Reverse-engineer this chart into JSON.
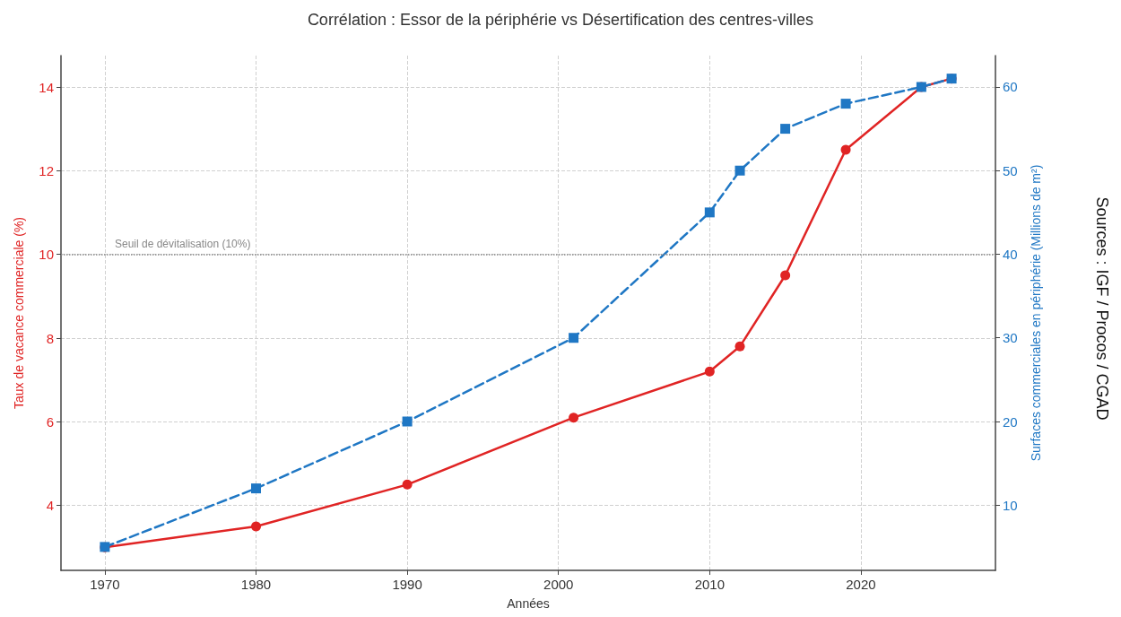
{
  "chart_data": {
    "type": "line",
    "title": "Corrélation : Essor de la périphérie vs Désertification des centres-villes",
    "xlabel": "Années",
    "ylabel": "Taux de vacance commerciale (%)",
    "y2label": "Surfaces commerciales en périphérie (Millions de m²)",
    "x": [
      1970,
      1980,
      1990,
      2001,
      2010,
      2012,
      2015,
      2019,
      2024,
      2026
    ],
    "series": [
      {
        "color": "#e02424",
        "marker": "circle",
        "line_style": "solid",
        "values": [
          3.0,
          3.5,
          4.5,
          6.1,
          7.2,
          7.8,
          9.5,
          12.5,
          14.0,
          14.2
        ]
      },
      {
        "color": "#1f77c4",
        "marker": "square",
        "line_style": "dashed",
        "axis": "y2",
        "values": [
          5,
          12,
          20,
          30,
          45,
          50,
          55,
          58,
          60,
          61
        ]
      }
    ],
    "xlim": [
      1967.1,
      2028.9
    ],
    "xticks": [
      1970,
      1980,
      1990,
      2000,
      2010,
      2020
    ],
    "ylim": [
      2.45,
      14.75
    ],
    "yticks": [
      4,
      6,
      8,
      10,
      12,
      14
    ],
    "y2lim": [
      2.2,
      63.75
    ],
    "y2ticks": [
      10,
      20,
      30,
      40,
      50,
      60
    ],
    "ref_lines": [
      {
        "axis": "y",
        "value": 10,
        "label": "Seuil de dévitalisation (10%)",
        "color": "#888888",
        "line_style": "dotted"
      }
    ],
    "annotations": [
      "Sources : IGF / Procos / CGAD"
    ],
    "grid": true,
    "legend": false
  }
}
